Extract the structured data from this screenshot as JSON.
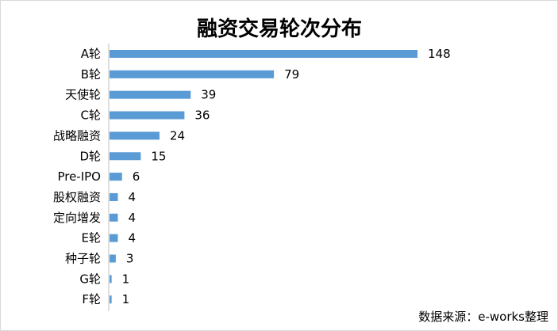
{
  "chart_data": {
    "type": "bar",
    "orientation": "horizontal",
    "title": "融资交易轮次分布",
    "categories": [
      "A轮",
      "B轮",
      "天使轮",
      "C轮",
      "战略融资",
      "D轮",
      "Pre-IPO",
      "股权融资",
      "定向增发",
      "E轮",
      "种子轮",
      "G轮",
      "F轮"
    ],
    "values": [
      148,
      79,
      39,
      36,
      24,
      15,
      6,
      4,
      4,
      4,
      3,
      1,
      1
    ],
    "xlim": [
      0,
      150
    ],
    "grid": false,
    "data_labels": true,
    "bar_color": "#5b9bd5",
    "source_note": "数据来源：e-works整理"
  }
}
